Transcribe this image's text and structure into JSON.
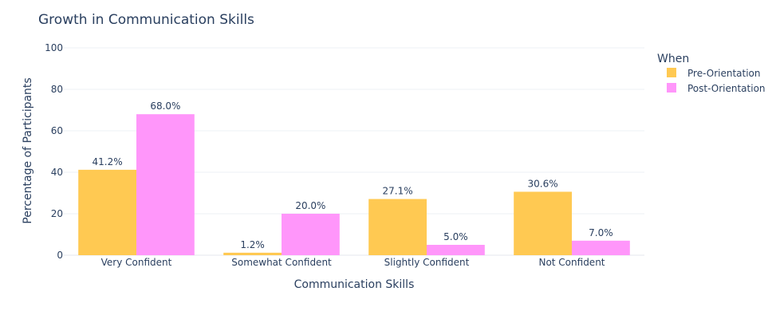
{
  "chart_data": {
    "type": "bar",
    "title": "Growth in Communication Skills",
    "xlabel": "Communication Skills",
    "ylabel": "Percentage of Participants",
    "categories": [
      "Very Confident",
      "Somewhat Confident",
      "Slightly Confident",
      "Not Confident"
    ],
    "series": [
      {
        "name": "Pre-Orientation",
        "values": [
          41.2,
          1.2,
          27.1,
          30.6
        ],
        "labels": [
          "41.2%",
          "1.2%",
          "27.1%",
          "30.6%"
        ],
        "color": "#FFC952"
      },
      {
        "name": "Post-Orientation",
        "values": [
          68.0,
          20.0,
          5.0,
          7.0
        ],
        "labels": [
          "68.0%",
          "20.0%",
          "5.0%",
          "7.0%"
        ],
        "color": "#FF96FA"
      }
    ],
    "ylim": [
      0,
      100
    ],
    "yticks": [
      "0",
      "20",
      "40",
      "60",
      "80",
      "100"
    ],
    "legend": {
      "title": "When",
      "placement": "top-right"
    },
    "grid": true
  }
}
